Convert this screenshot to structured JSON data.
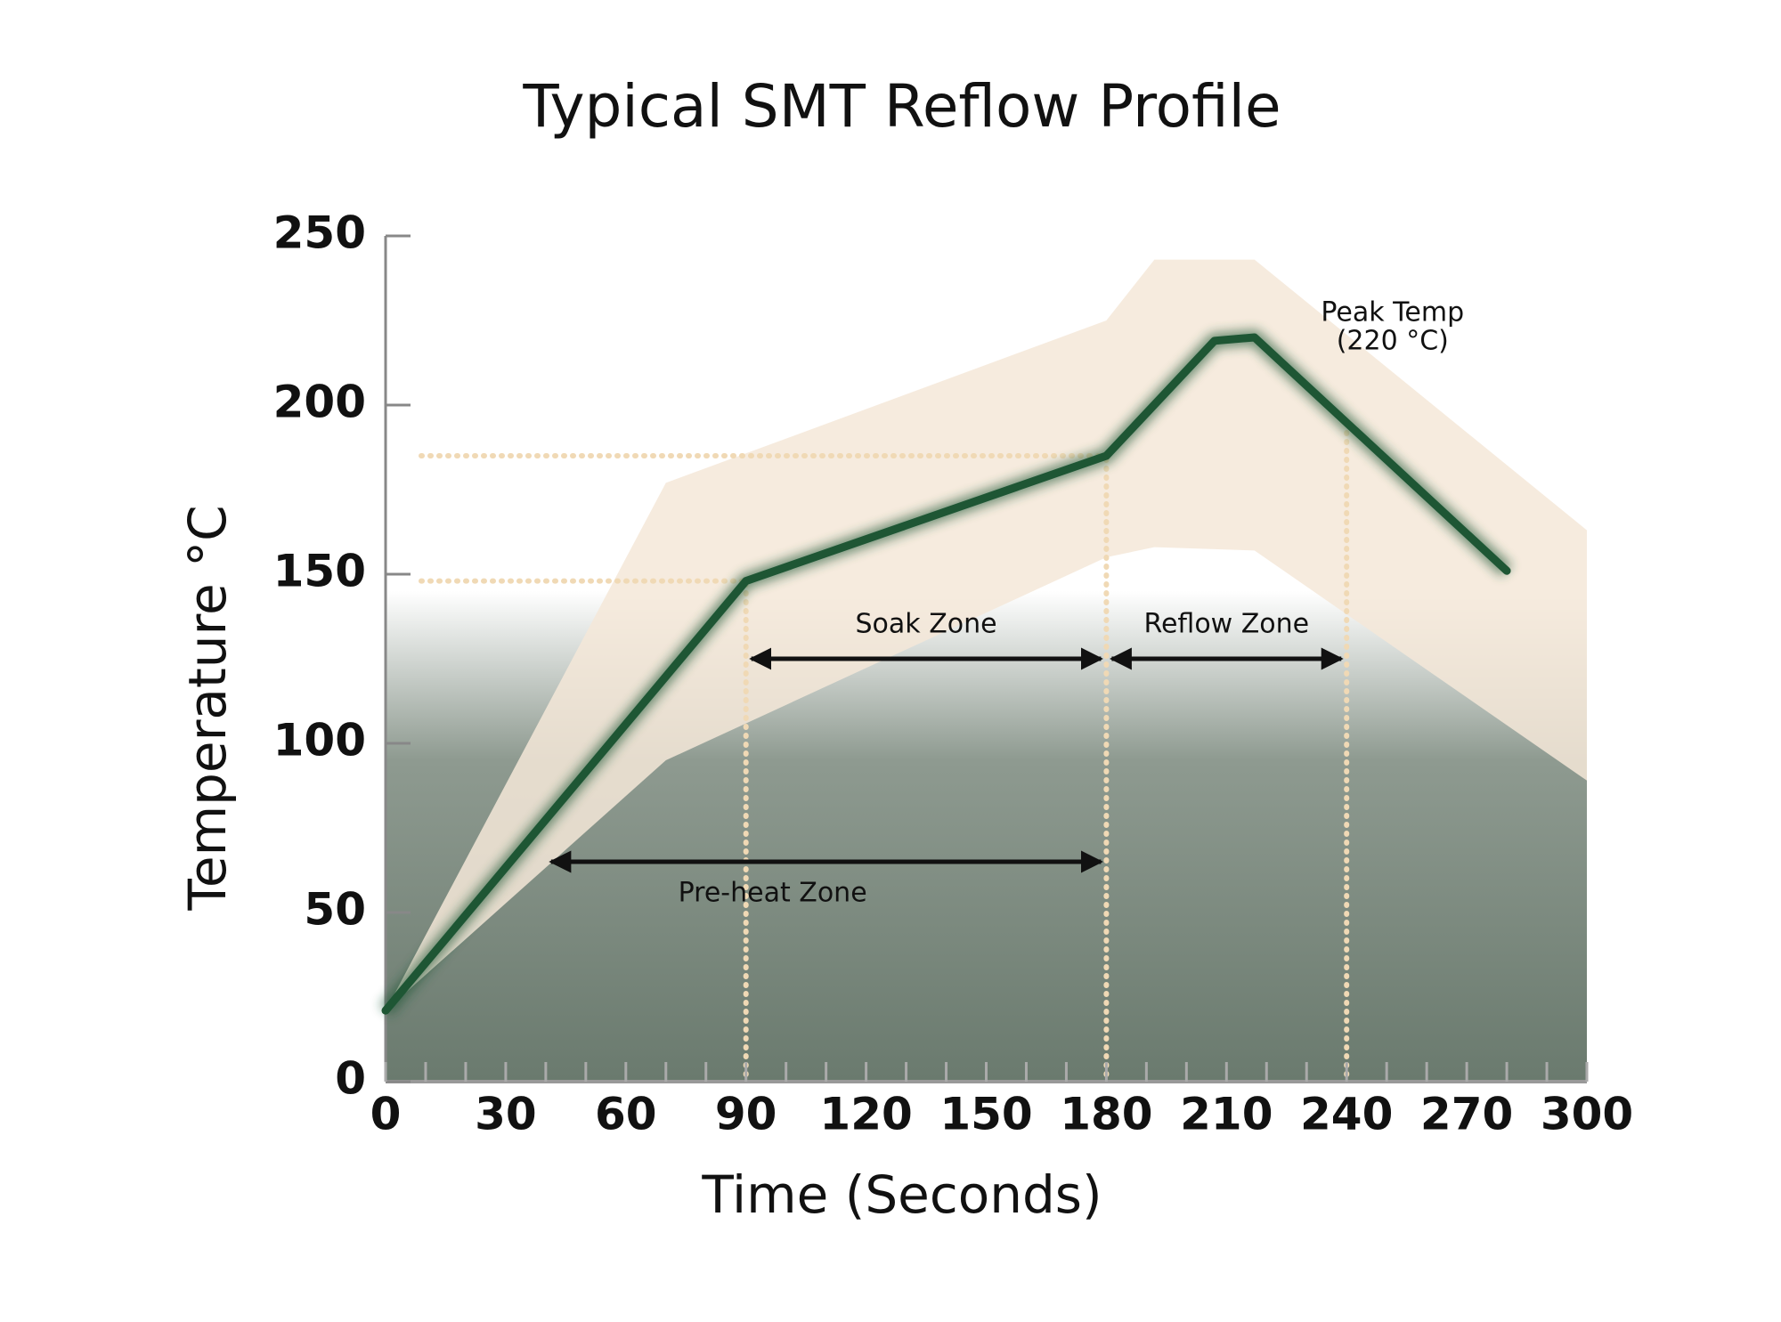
{
  "chart_data": {
    "type": "line",
    "title": "Typical SMT Reflow Profile",
    "x_label": "Time (Seconds)",
    "y_label": "Temperature °C",
    "x": [
      0,
      90,
      180,
      207,
      217,
      280
    ],
    "series": [
      {
        "color": "#1e5634",
        "values": [
          21,
          148,
          185,
          219,
          220,
          151
        ]
      }
    ],
    "bands": [
      {
        "color": "#f4e8d8",
        "x": [
          0,
          70,
          180,
          192,
          217,
          300
        ],
        "high": [
          21,
          177,
          225,
          243,
          243,
          163
        ],
        "low": [
          21,
          95,
          155,
          158,
          157,
          89
        ]
      }
    ],
    "xlim": [
      0,
      300
    ],
    "ylim": [
      0,
      250
    ],
    "xticks": [
      0,
      30,
      60,
      90,
      120,
      150,
      180,
      210,
      240,
      270,
      300
    ],
    "yticks": [
      0,
      50,
      100,
      150,
      200,
      250
    ],
    "x_minor_ticks": [
      10,
      20,
      40,
      50,
      70,
      80,
      100,
      110,
      130,
      140,
      160,
      170,
      190,
      200,
      220,
      230,
      250,
      260,
      280,
      290
    ],
    "hlines": [
      {
        "value": 148,
        "to": 90
      },
      {
        "value": 185,
        "to": 180
      }
    ],
    "vlines": [
      90,
      180,
      240
    ],
    "zones": [
      {
        "label": "Soak Zone",
        "start": 90,
        "end": 180,
        "level": 125,
        "label_side": "above"
      },
      {
        "label": "Reflow Zone",
        "start": 180,
        "end": 240,
        "level": 125,
        "label_side": "above"
      },
      {
        "label": "Pre-heat Zone",
        "start": 40,
        "end": 180,
        "level": 65,
        "label_side": "below"
      }
    ],
    "peak_annotation": [
      "Peak Temp",
      "(220 °C)"
    ]
  }
}
